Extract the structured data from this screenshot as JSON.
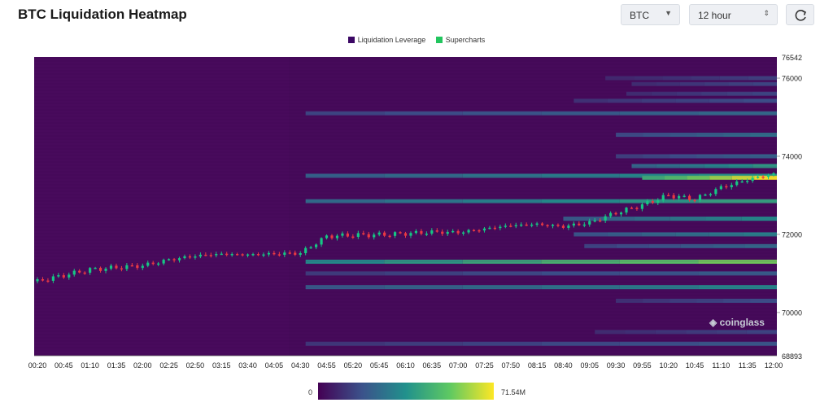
{
  "header": {
    "title": "BTC Liquidation Heatmap",
    "symbol_select": "BTC",
    "period_select": "12 hour",
    "refresh_icon": "refresh-icon"
  },
  "legend": [
    {
      "label": "Liquidation Leverage",
      "color": "#3b0764"
    },
    {
      "label": "Supercharts",
      "color": "#22c55e"
    }
  ],
  "colorbar": {
    "min_label": "0",
    "max_label": "71.54M"
  },
  "watermark": "coinglass",
  "chart_data": {
    "type": "heatmap",
    "title": "BTC Liquidation Heatmap",
    "x_ticks": [
      "00:20",
      "00:45",
      "01:10",
      "01:35",
      "02:00",
      "02:25",
      "02:50",
      "03:15",
      "03:40",
      "04:05",
      "04:30",
      "04:55",
      "05:20",
      "05:45",
      "06:10",
      "06:35",
      "07:00",
      "07:25",
      "07:50",
      "08:15",
      "08:40",
      "09:05",
      "09:30",
      "09:55",
      "10:20",
      "10:45",
      "11:10",
      "11:35",
      "12:00"
    ],
    "y_ticks": [
      76000,
      74000,
      72000,
      70000
    ],
    "y_top_label": "76542",
    "y_bottom_label": "68893",
    "ylim": [
      68893,
      76542
    ],
    "colorscale": {
      "min": 0,
      "max": 71540000,
      "colors": [
        "#440154",
        "#3b528b",
        "#21918c",
        "#5ec962",
        "#fde725"
      ]
    },
    "liquidation_bands": [
      {
        "price": 76000,
        "start": "09:20",
        "intensity": 0.2
      },
      {
        "price": 75850,
        "start": "09:45",
        "intensity": 0.22
      },
      {
        "price": 75600,
        "start": "09:40",
        "intensity": 0.22
      },
      {
        "price": 75420,
        "start": "08:50",
        "intensity": 0.25
      },
      {
        "price": 75100,
        "start": "04:35",
        "intensity": 0.35
      },
      {
        "price": 74550,
        "start": "09:30",
        "intensity": 0.38
      },
      {
        "price": 74000,
        "start": "09:30",
        "intensity": 0.32
      },
      {
        "price": 73750,
        "start": "09:45",
        "intensity": 0.55
      },
      {
        "price": 73500,
        "start": "04:35",
        "intensity": 0.52
      },
      {
        "price": 73450,
        "start": "09:55",
        "intensity": 1.0
      },
      {
        "price": 72850,
        "start": "04:35",
        "intensity": 0.58
      },
      {
        "price": 72400,
        "start": "08:40",
        "intensity": 0.5
      },
      {
        "price": 72000,
        "start": "08:50",
        "intensity": 0.45
      },
      {
        "price": 71700,
        "start": "09:00",
        "intensity": 0.35
      },
      {
        "price": 71300,
        "start": "04:35",
        "intensity": 0.78
      },
      {
        "price": 71000,
        "start": "04:35",
        "intensity": 0.3
      },
      {
        "price": 70650,
        "start": "04:35",
        "intensity": 0.48
      },
      {
        "price": 70300,
        "start": "09:30",
        "intensity": 0.25
      },
      {
        "price": 69500,
        "start": "09:10",
        "intensity": 0.22
      },
      {
        "price": 69200,
        "start": "04:35",
        "intensity": 0.28
      }
    ],
    "price_series": {
      "times": [
        "00:20",
        "00:45",
        "01:10",
        "01:35",
        "02:00",
        "02:25",
        "02:50",
        "03:15",
        "03:40",
        "04:05",
        "04:30",
        "04:55",
        "05:20",
        "05:45",
        "06:10",
        "06:35",
        "07:00",
        "07:25",
        "07:50",
        "08:15",
        "08:40",
        "09:05",
        "09:30",
        "09:55",
        "10:20",
        "10:45",
        "11:10",
        "11:35",
        "12:00"
      ],
      "values": [
        70800,
        70950,
        71100,
        71150,
        71200,
        71350,
        71450,
        71500,
        71480,
        71500,
        71520,
        71950,
        71980,
        71990,
        72020,
        72060,
        72050,
        72140,
        72230,
        72260,
        72200,
        72300,
        72550,
        72750,
        73000,
        72900,
        73200,
        73400,
        73550
      ]
    }
  }
}
